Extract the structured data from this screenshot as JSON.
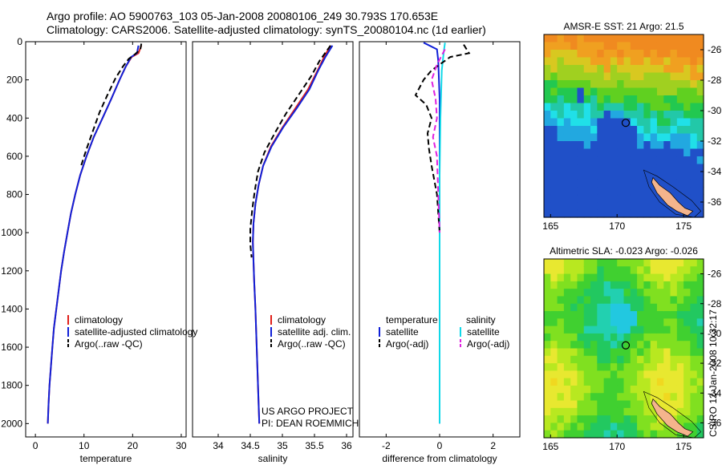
{
  "header": {
    "line1": "Argo profile: AO 5900763_103 05-Jan-2008 20080106_249 30.793S 170.653E",
    "line2": "Climatology: CARS2006. Satellite-adjusted climatology: synTS_20080104.nc (1d earlier)"
  },
  "chart_data": [
    {
      "id": "temperature",
      "type": "line",
      "xlabel": "temperature",
      "xlim": [
        -2,
        31
      ],
      "ylim": [
        2070,
        0
      ],
      "xticks": [
        0,
        10,
        20,
        30
      ],
      "yticks": [
        0,
        200,
        400,
        600,
        800,
        1000,
        1200,
        1400,
        1600,
        1800,
        2000
      ],
      "series": [
        {
          "name": "climatology",
          "color": "#e0201a",
          "dash": "",
          "points": [
            [
              21.8,
              20
            ],
            [
              21.2,
              60
            ],
            [
              19.8,
              80
            ],
            [
              18.6,
              130
            ],
            [
              17.3,
              200
            ],
            [
              15.6,
              300
            ],
            [
              13.8,
              400
            ],
            [
              12,
              500
            ],
            [
              10.5,
              600
            ],
            [
              9.2,
              700
            ],
            [
              8.2,
              800
            ],
            [
              7.3,
              900
            ],
            [
              6.6,
              1000
            ],
            [
              5.9,
              1100
            ],
            [
              5.3,
              1200
            ],
            [
              4.8,
              1300
            ],
            [
              4.3,
              1400
            ],
            [
              3.8,
              1500
            ],
            [
              3.5,
              1600
            ],
            [
              3.2,
              1700
            ],
            [
              2.9,
              1800
            ],
            [
              2.7,
              1900
            ],
            [
              2.55,
              2000
            ]
          ]
        },
        {
          "name": "satellite-adjusted climatology",
          "color": "#1020d8",
          "dash": "",
          "points": [
            [
              21.2,
              20
            ],
            [
              20.9,
              60
            ],
            [
              19.7,
              80
            ],
            [
              18.6,
              130
            ],
            [
              17.3,
              200
            ],
            [
              15.6,
              300
            ],
            [
              13.8,
              400
            ],
            [
              12,
              500
            ],
            [
              10.5,
              600
            ],
            [
              9.2,
              700
            ],
            [
              8.2,
              800
            ],
            [
              7.3,
              900
            ],
            [
              6.6,
              1000
            ],
            [
              5.9,
              1100
            ],
            [
              5.3,
              1200
            ],
            [
              4.8,
              1300
            ],
            [
              4.3,
              1400
            ],
            [
              3.8,
              1500
            ],
            [
              3.5,
              1600
            ],
            [
              3.2,
              1700
            ],
            [
              2.9,
              1800
            ],
            [
              2.7,
              1900
            ],
            [
              2.55,
              2000
            ]
          ]
        },
        {
          "name": "Argo(..raw -QC)",
          "color": "#000000",
          "dash": "7,4",
          "points": [
            [
              21.8,
              10
            ],
            [
              21.6,
              40
            ],
            [
              20.5,
              65
            ],
            [
              19.2,
              90
            ],
            [
              18,
              130
            ],
            [
              16.5,
              190
            ],
            [
              14.8,
              280
            ],
            [
              13.2,
              370
            ],
            [
              11.8,
              470
            ],
            [
              10.4,
              570
            ],
            [
              9.4,
              650
            ]
          ]
        }
      ],
      "legend": [
        "climatology",
        "satellite-adjusted climatology",
        "Argo(..raw -QC)"
      ]
    },
    {
      "id": "salinity",
      "type": "line",
      "xlabel": "salinity",
      "xlim": [
        33.6,
        36.1
      ],
      "ylim": [
        2070,
        0
      ],
      "xticks": [
        34,
        34.5,
        35,
        35.5,
        36
      ],
      "annotations": [
        "US ARGO PROJECT",
        "PI: DEAN ROEMMICH"
      ],
      "series": [
        {
          "name": "climatology",
          "color": "#e0201a",
          "dash": "",
          "points": [
            [
              35.75,
              20
            ],
            [
              35.65,
              80
            ],
            [
              35.55,
              150
            ],
            [
              35.4,
              250
            ],
            [
              35.2,
              350
            ],
            [
              35,
              450
            ],
            [
              34.82,
              550
            ],
            [
              34.7,
              650
            ],
            [
              34.63,
              750
            ],
            [
              34.58,
              850
            ],
            [
              34.55,
              950
            ],
            [
              34.54,
              1050
            ],
            [
              34.55,
              1150
            ],
            [
              34.56,
              1250
            ],
            [
              34.58,
              1400
            ],
            [
              34.6,
              1600
            ],
            [
              34.62,
              1800
            ],
            [
              34.64,
              2000
            ]
          ]
        },
        {
          "name": "satellite adj. clim.",
          "color": "#1020d8",
          "dash": "",
          "points": [
            [
              35.78,
              20
            ],
            [
              35.67,
              80
            ],
            [
              35.56,
              150
            ],
            [
              35.42,
              250
            ],
            [
              35.22,
              350
            ],
            [
              35.01,
              450
            ],
            [
              34.83,
              550
            ],
            [
              34.7,
              650
            ],
            [
              34.63,
              750
            ],
            [
              34.58,
              850
            ],
            [
              34.55,
              950
            ],
            [
              34.54,
              1050
            ],
            [
              34.55,
              1150
            ],
            [
              34.56,
              1250
            ],
            [
              34.58,
              1400
            ],
            [
              34.6,
              1600
            ],
            [
              34.62,
              1800
            ],
            [
              34.64,
              2000
            ]
          ]
        },
        {
          "name": "Argo(..raw -QC)",
          "color": "#000000",
          "dash": "7,4",
          "points": [
            [
              35.75,
              20
            ],
            [
              35.58,
              100
            ],
            [
              35.45,
              180
            ],
            [
              35.25,
              280
            ],
            [
              35.05,
              380
            ],
            [
              34.88,
              480
            ],
            [
              34.72,
              580
            ],
            [
              34.62,
              680
            ],
            [
              34.57,
              780
            ],
            [
              34.53,
              880
            ],
            [
              34.5,
              980
            ],
            [
              34.5,
              1060
            ],
            [
              34.52,
              1130
            ]
          ]
        }
      ],
      "legend": [
        "climatology",
        "satellite adj. clim.",
        "Argo(..raw -QC)"
      ]
    },
    {
      "id": "difference",
      "type": "line",
      "xlabel": "difference from climatology",
      "xlim": [
        -3,
        3
      ],
      "ylim": [
        2070,
        0
      ],
      "xticks": [
        -2,
        0,
        2
      ],
      "series": [
        {
          "name": "temperature satellite",
          "color": "#1020d8",
          "dash": "",
          "points": [
            [
              -0.6,
              5
            ],
            [
              -0.1,
              40
            ],
            [
              -0.05,
              100
            ],
            [
              0,
              300
            ],
            [
              0,
              1000
            ],
            [
              0,
              2000
            ]
          ]
        },
        {
          "name": "salinity satellite",
          "color": "#10d8e8",
          "dash": "",
          "points": [
            [
              0.2,
              5
            ],
            [
              0.15,
              60
            ],
            [
              0.08,
              150
            ],
            [
              0.03,
              400
            ],
            [
              0,
              700
            ],
            [
              0,
              2000
            ]
          ]
        },
        {
          "name": "temperature Argo(-adj)",
          "color": "#000000",
          "dash": "7,4",
          "points": [
            [
              0.9,
              15
            ],
            [
              1.1,
              60
            ],
            [
              0.4,
              80
            ],
            [
              0.1,
              110
            ],
            [
              -0.3,
              150
            ],
            [
              -0.6,
              200
            ],
            [
              -0.9,
              280
            ],
            [
              -0.5,
              330
            ],
            [
              -0.3,
              400
            ],
            [
              -0.45,
              480
            ],
            [
              -0.4,
              560
            ],
            [
              -0.3,
              650
            ],
            [
              -0.1,
              800
            ],
            [
              0,
              1000
            ]
          ]
        },
        {
          "name": "salinity Argo(-adj)",
          "color": "#e020e0",
          "dash": "7,4",
          "points": [
            [
              0.2,
              40
            ],
            [
              -0.1,
              120
            ],
            [
              -0.3,
              200
            ],
            [
              -0.15,
              300
            ],
            [
              -0.1,
              400
            ],
            [
              -0.25,
              500
            ],
            [
              -0.1,
              600
            ],
            [
              -0.05,
              800
            ],
            [
              0,
              1000
            ]
          ]
        }
      ],
      "legend_columns": [
        "temperature",
        "salinity"
      ],
      "legend": [
        "satellite",
        "Argo(-adj)",
        "satellite",
        "Argo(-adj)"
      ]
    },
    {
      "id": "sst-map",
      "type": "heatmap",
      "title": "AMSR-E SST: 21 Argo: 21.5",
      "xlim": [
        164.5,
        176.5
      ],
      "ylim": [
        -37,
        -25
      ],
      "xticks": [
        165,
        170,
        175
      ],
      "yticks": [
        -26,
        -28,
        -30,
        -32,
        -34,
        -36
      ],
      "marker": [
        170.65,
        -30.8
      ]
    },
    {
      "id": "sla-map",
      "type": "heatmap",
      "title": "Altimetric SLA: -0.023 Argo: -0.026",
      "xlim": [
        164.5,
        176.5
      ],
      "ylim": [
        -37,
        -25
      ],
      "xticks": [
        165,
        170,
        175
      ],
      "yticks": [
        -26,
        -28,
        -30,
        -32,
        -34,
        -36
      ],
      "marker": [
        170.65,
        -30.8
      ],
      "side_label": "CSIRO 12-Jan-2008 10:32:17"
    }
  ]
}
